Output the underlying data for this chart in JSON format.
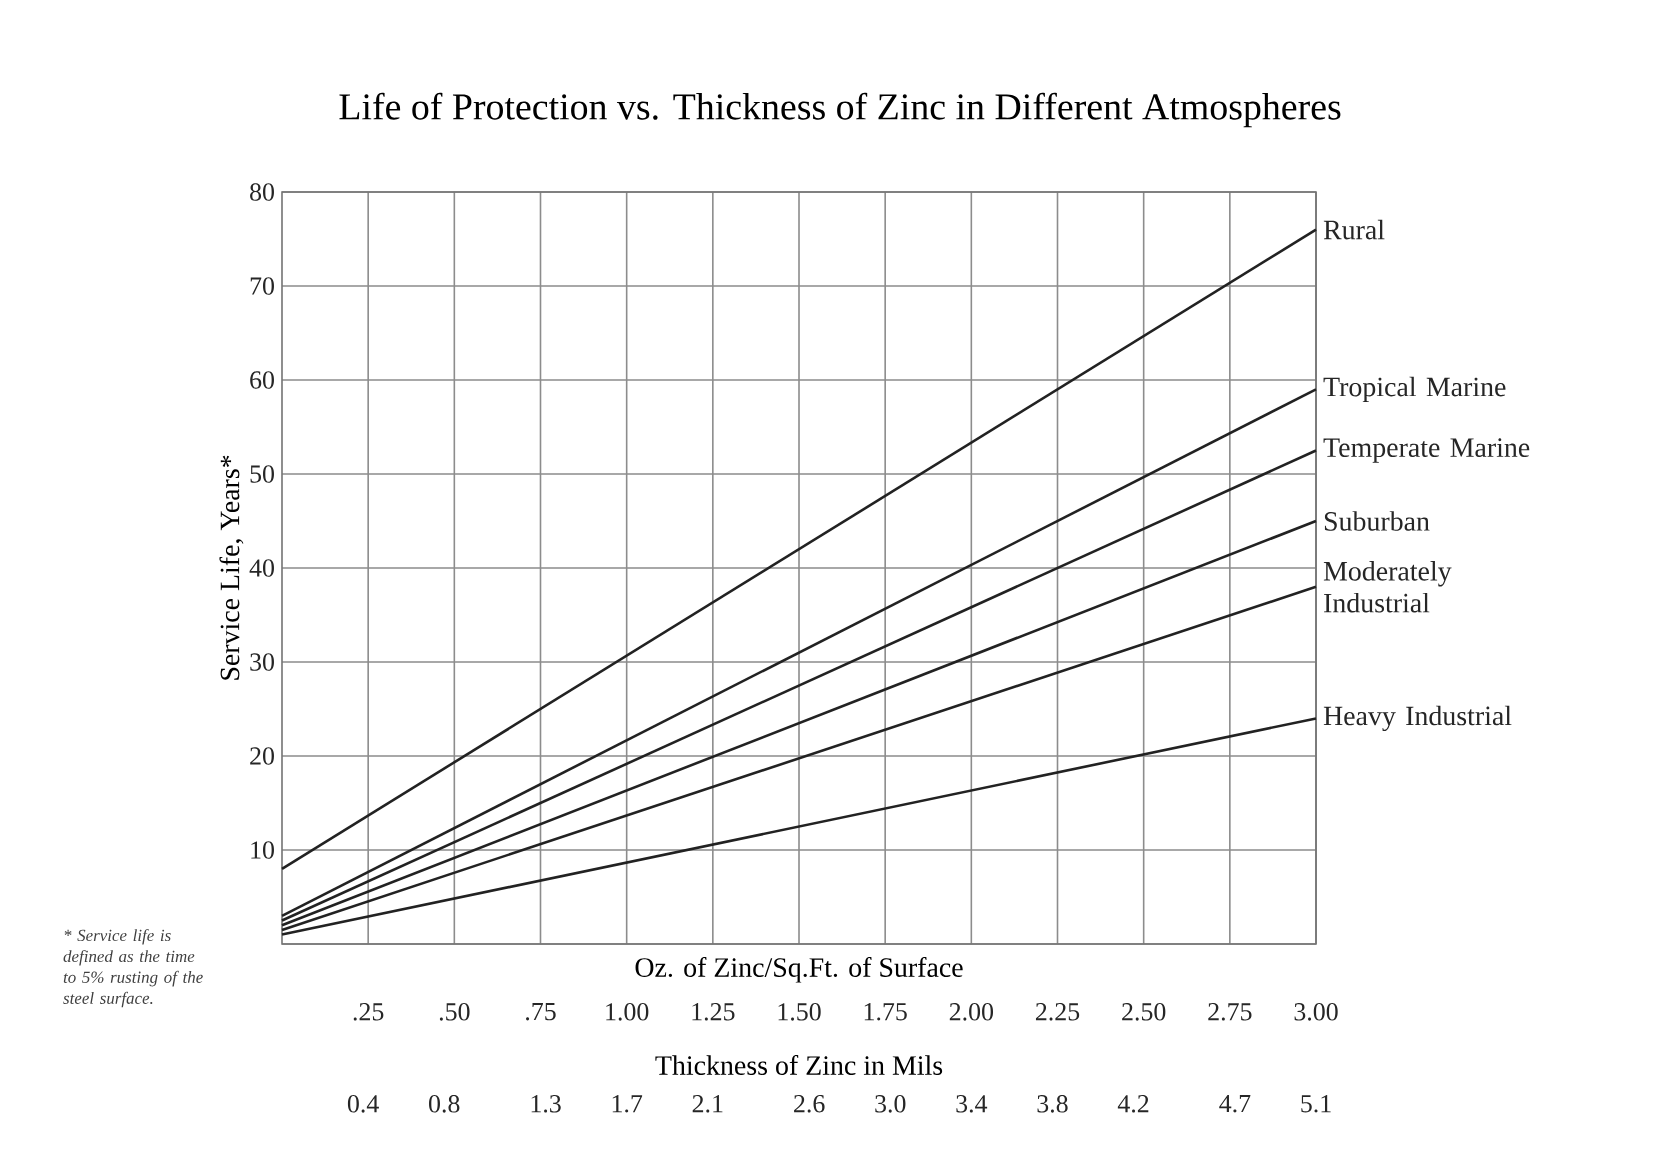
{
  "chart_data": {
    "type": "line",
    "title": "Life of Protection vs. Thickness of Zinc in Different Atmospheres",
    "xlabel": "Oz. of Zinc/Sq.Ft. of Surface",
    "ylabel": "Service Life, Years*",
    "x2label": "Thickness of Zinc in Mils",
    "x": [
      0,
      3
    ],
    "series": [
      {
        "name": "Rural",
        "color": "#222222",
        "values": [
          8,
          76
        ]
      },
      {
        "name": "Tropical Marine",
        "color": "#222222",
        "values": [
          3,
          59
        ]
      },
      {
        "name": "Temperate Marine",
        "color": "#222222",
        "values": [
          2.5,
          52.5
        ]
      },
      {
        "name": "Suburban",
        "color": "#222222",
        "values": [
          2,
          45
        ]
      },
      {
        "name": "Moderately Industrial",
        "color": "#222222",
        "values": [
          1.5,
          38
        ]
      },
      {
        "name": "Heavy Industrial",
        "color": "#222222",
        "values": [
          1,
          24
        ]
      }
    ],
    "xlim": [
      0,
      3
    ],
    "ylim": [
      0,
      80
    ],
    "xticks": [
      {
        "value": 0.25,
        "label": ".25"
      },
      {
        "value": 0.5,
        "label": ".50"
      },
      {
        "value": 0.75,
        "label": ".75"
      },
      {
        "value": 1,
        "label": "1.00"
      },
      {
        "value": 1.25,
        "label": "1.25"
      },
      {
        "value": 1.5,
        "label": "1.50"
      },
      {
        "value": 1.75,
        "label": "1.75"
      },
      {
        "value": 2,
        "label": "2.00"
      },
      {
        "value": 2.25,
        "label": "2.25"
      },
      {
        "value": 2.5,
        "label": "2.50"
      },
      {
        "value": 2.75,
        "label": "2.75"
      },
      {
        "value": 3,
        "label": "3.00"
      }
    ],
    "x2lim": [
      0,
      5.1
    ],
    "x2ticks": [
      0.4,
      0.8,
      1.3,
      1.7,
      2.1,
      2.6,
      {
        "value": 3,
        "label": "3.0"
      },
      3.4,
      3.8,
      4.2,
      4.7,
      5.1
    ],
    "yticks": [
      {
        "value": 0,
        "label": null
      },
      10,
      20,
      30,
      40,
      50,
      60,
      70,
      80
    ],
    "grid": true,
    "marker": "none",
    "line_style": "solid",
    "annotations": [
      "* Service life is defined as the time to 5% rusting of the steel surface."
    ]
  }
}
